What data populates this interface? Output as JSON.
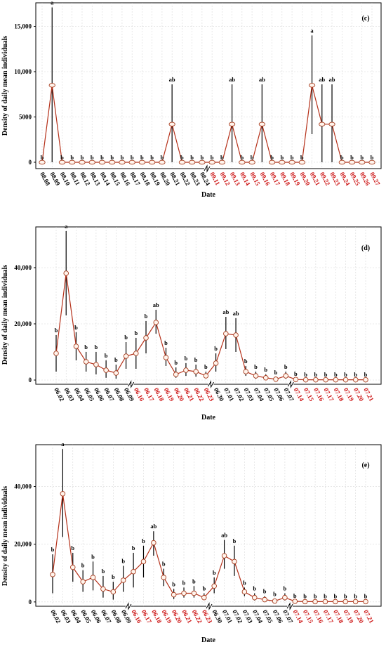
{
  "chart_data": [
    {
      "type": "line",
      "panel": "(c)",
      "xlabel": "Date",
      "ylabel": "Density of daily mean individuals",
      "ylim": [
        -700,
        17600
      ],
      "yticks": [
        0,
        5000,
        10000,
        15000
      ],
      "ytick_labels": [
        "0",
        "5000",
        "10,000",
        "15,000"
      ],
      "grid": true,
      "axis_break_after": "08.24",
      "x": [
        "08.08",
        "08.09",
        "08.10",
        "08.11",
        "08.12",
        "08.13",
        "08.14",
        "08.15",
        "08.16",
        "08.17",
        "08.18",
        "08.19",
        "08.20",
        "08.21",
        "08.22",
        "08.23",
        "08.24",
        "09.11",
        "09.12",
        "09.13",
        "09.14",
        "09.15",
        "09.16",
        "09.17",
        "09.18",
        "09.19",
        "09.20",
        "09.21",
        "09.22",
        "09.23",
        "09.24",
        "09.25",
        "09.26",
        "09.27"
      ],
      "red_labels": [
        "09.11",
        "09.12",
        "09.13",
        "09.14",
        "09.15",
        "09.16",
        "09.17",
        "09.18",
        "09.19",
        "09.20",
        "09.21",
        "09.22",
        "09.23",
        "09.24",
        "09.25",
        "09.26",
        "09.27"
      ],
      "values": [
        0,
        8500,
        0,
        0,
        0,
        0,
        0,
        0,
        0,
        0,
        0,
        0,
        0,
        4200,
        0,
        0,
        0,
        0,
        0,
        4200,
        0,
        0,
        4200,
        0,
        0,
        0,
        0,
        8500,
        4200,
        4200,
        0,
        0,
        0,
        0
      ],
      "err_low": [
        0,
        0,
        0,
        0,
        0,
        0,
        0,
        0,
        0,
        0,
        0,
        0,
        0,
        0,
        0,
        0,
        0,
        0,
        0,
        0,
        0,
        0,
        0,
        0,
        0,
        0,
        0,
        3100,
        0,
        0,
        0,
        0,
        0,
        0
      ],
      "err_high": [
        0,
        17100,
        0,
        0,
        0,
        0,
        0,
        0,
        0,
        0,
        0,
        0,
        0,
        8600,
        0,
        0,
        0,
        0,
        0,
        8600,
        0,
        0,
        8600,
        0,
        0,
        0,
        0,
        14000,
        8600,
        8600,
        0,
        0,
        0,
        0
      ],
      "letters": [
        "b",
        "a",
        "b",
        "b",
        "b",
        "b",
        "b",
        "b",
        "b",
        "b",
        "b",
        "b",
        "b",
        "ab",
        "b",
        "b",
        "b",
        "b",
        "b",
        "ab",
        "b",
        "b",
        "ab",
        "b",
        "b",
        "b",
        "b",
        "a",
        "ab",
        "ab",
        "b",
        "b",
        "b",
        "b"
      ]
    },
    {
      "type": "line",
      "panel": "(d)",
      "xlabel": "Date",
      "ylabel": "Density of daily mean individuals",
      "ylim": [
        -1500,
        54500
      ],
      "yticks": [
        0,
        20000,
        40000
      ],
      "ytick_labels": [
        "0",
        "20,000",
        "40,000"
      ],
      "grid": true,
      "axis_break_after": [
        "06.09",
        "06.23",
        "07.07"
      ],
      "x": [
        "06.02",
        "06.03",
        "06.04",
        "06.05",
        "06.06",
        "06.07",
        "06.08",
        "06.09",
        "06.16",
        "06.17",
        "06.18",
        "06.19",
        "06.20",
        "06.21",
        "06.22",
        "06.23",
        "06.30",
        "07.01",
        "07.02",
        "07.03",
        "07.04",
        "07.05",
        "07.06",
        "07.07",
        "07.14",
        "07.15",
        "07.16",
        "07.17",
        "07.18",
        "07.19",
        "07.20",
        "07.21"
      ],
      "red_labels": [
        "06.16",
        "06.17",
        "06.18",
        "06.19",
        "06.20",
        "06.21",
        "06.22",
        "06.23",
        "07.14",
        "07.15",
        "07.16",
        "07.17",
        "07.18",
        "07.19",
        "07.20",
        "07.21"
      ],
      "values": [
        9500,
        38000,
        12000,
        6500,
        5500,
        3500,
        2500,
        8500,
        9500,
        15000,
        20500,
        8000,
        2000,
        3500,
        3000,
        1500,
        6000,
        16500,
        16000,
        3000,
        1500,
        800,
        300,
        1500,
        200,
        100,
        100,
        100,
        100,
        100,
        100,
        100
      ],
      "err_low": [
        3000,
        23000,
        7000,
        3000,
        2000,
        800,
        500,
        4000,
        4000,
        9500,
        16500,
        5000,
        800,
        1500,
        1200,
        800,
        3000,
        11000,
        10000,
        1500,
        500,
        200,
        0,
        500,
        0,
        0,
        0,
        0,
        0,
        0,
        0,
        0
      ],
      "err_high": [
        16000,
        53000,
        17000,
        10000,
        10000,
        7000,
        5500,
        13500,
        15000,
        21000,
        25000,
        11500,
        4500,
        6000,
        5500,
        3000,
        9500,
        22500,
        22000,
        5000,
        3000,
        2000,
        1000,
        3000,
        500,
        300,
        300,
        300,
        300,
        300,
        300,
        300
      ],
      "letters": [
        "b",
        "a",
        "b",
        "b",
        "b",
        "b",
        "b",
        "b",
        "b",
        "b",
        "ab",
        "b",
        "b",
        "b",
        "b",
        "b",
        "b",
        "ab",
        "ab",
        "b",
        "b",
        "b",
        "b",
        "b",
        "b",
        "b",
        "b",
        "b",
        "b",
        "b",
        "b",
        "b"
      ]
    },
    {
      "type": "line",
      "panel": "(e)",
      "xlabel": "Date",
      "ylabel": "Density of daily mean individuals",
      "ylim": [
        -1500,
        54500
      ],
      "yticks": [
        0,
        20000,
        40000
      ],
      "ytick_labels": [
        "0",
        "20,000",
        "40,000"
      ],
      "grid": true,
      "axis_break_after": [
        "06.09",
        "06.23",
        "07.07"
      ],
      "x": [
        "06.02",
        "06.03",
        "06.04",
        "06.05",
        "06.06",
        "06.07",
        "06.08",
        "06.09",
        "06.16",
        "06.17",
        "06.18",
        "06.19",
        "06.20",
        "06.21",
        "06.22",
        "06.23",
        "06.30",
        "07.01",
        "07.02",
        "07.03",
        "07.04",
        "07.05",
        "07.06",
        "07.07",
        "07.14",
        "07.15",
        "07.16",
        "07.17",
        "07.18",
        "07.19",
        "07.20",
        "07.21"
      ],
      "red_labels": [
        "06.16",
        "06.17",
        "06.18",
        "06.19",
        "06.20",
        "06.21",
        "06.22",
        "06.23",
        "07.14",
        "07.15",
        "07.16",
        "07.17",
        "07.18",
        "07.19",
        "07.20",
        "07.21"
      ],
      "values": [
        9500,
        37500,
        12000,
        7000,
        8500,
        4500,
        3500,
        7500,
        10500,
        14000,
        20500,
        8500,
        2500,
        3000,
        3000,
        1500,
        5500,
        16000,
        14000,
        3500,
        1500,
        800,
        300,
        1500,
        200,
        100,
        100,
        100,
        100,
        100,
        100,
        100
      ],
      "err_low": [
        3000,
        22500,
        7000,
        3500,
        4000,
        1500,
        800,
        3500,
        5000,
        8500,
        16000,
        5500,
        1000,
        1500,
        1500,
        800,
        3000,
        11500,
        9000,
        2000,
        500,
        200,
        0,
        500,
        0,
        0,
        0,
        0,
        0,
        0,
        0,
        0
      ],
      "err_high": [
        16500,
        53000,
        17000,
        11000,
        14000,
        9000,
        7000,
        12500,
        17000,
        19500,
        24500,
        11500,
        4500,
        5000,
        5500,
        3000,
        8500,
        21500,
        19500,
        5000,
        3000,
        2000,
        1000,
        3000,
        500,
        300,
        300,
        300,
        300,
        300,
        300,
        300
      ],
      "letters": [
        "b",
        "a",
        "b",
        "b",
        "b",
        "b",
        "b",
        "b",
        "b",
        "b",
        "ab",
        "b",
        "b",
        "b",
        "b",
        "b",
        "b",
        "ab",
        "b",
        "b",
        "b",
        "b",
        "b",
        "b",
        "b",
        "b",
        "b",
        "b",
        "b",
        "b",
        "b",
        "b"
      ]
    }
  ]
}
